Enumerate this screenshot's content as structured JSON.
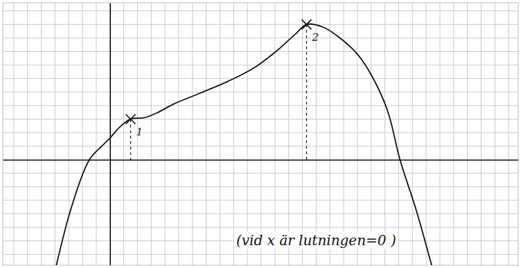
{
  "chart_data": {
    "type": "line",
    "grid": true,
    "tick_labels": false,
    "xlim": [
      -7.8,
      29.7
    ],
    "ylim": [
      -7.8,
      11.6
    ],
    "xticks": [
      -7,
      -6,
      -5,
      -4,
      -3,
      -2,
      -1,
      0,
      1,
      2,
      3,
      4,
      5,
      6,
      7,
      8,
      9,
      10,
      11,
      12,
      13,
      14,
      15,
      16,
      17,
      18,
      19,
      20,
      21,
      22,
      23,
      24,
      25,
      26,
      27,
      28,
      29
    ],
    "yticks": [
      -7,
      -6,
      -5,
      -4,
      -3,
      -2,
      -1,
      0,
      1,
      2,
      3,
      4,
      5,
      6,
      7,
      8,
      9,
      10,
      11
    ],
    "series": [
      {
        "color": "#111111",
        "line_style": "solid",
        "x": [
          -3.9,
          -2.8,
          -1.5,
          -0.5,
          0,
          0.7,
          1.5,
          2.5,
          3.5,
          4.6,
          6.5,
          8.6,
          10.5,
          12.2,
          13.5,
          14.3,
          15.5,
          16.6,
          18,
          19.1,
          20.2,
          21.1,
          22.3,
          23.4
        ],
        "values": [
          -7.8,
          -3.5,
          0,
          1.1,
          1.6,
          2.4,
          3,
          3.1,
          3.5,
          4.1,
          4.9,
          5.8,
          6.8,
          8.1,
          9.3,
          10,
          9.8,
          9.1,
          7.8,
          6.1,
          3.6,
          0,
          -3.8,
          -7.8
        ]
      }
    ],
    "annotations": [
      {
        "text": "1",
        "x": 1.5,
        "y": 3,
        "marker": "x"
      },
      {
        "text": "2",
        "x": 14.3,
        "y": 10,
        "marker": "x"
      },
      {
        "text": "(vid x är lutningen=0 )",
        "x": 15,
        "y": -6.3
      }
    ]
  }
}
